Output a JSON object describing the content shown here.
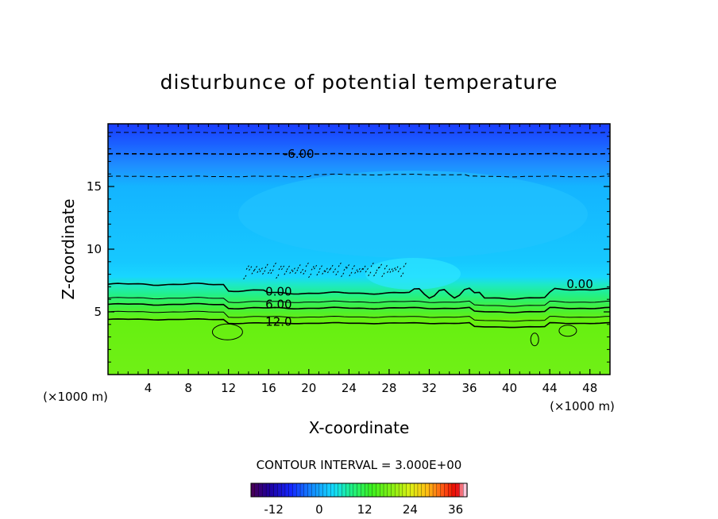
{
  "chart_data": {
    "type": "contour",
    "title": "disturbunce of potential temperature",
    "xlabel": "X-coordinate",
    "ylabel": "Z-coordinate",
    "x_unit_left": "(×1000 m)",
    "x_unit_right": "(×1000 m)",
    "xlim": [
      0,
      50
    ],
    "ylim": [
      0,
      20
    ],
    "x_ticks": [
      4,
      8,
      12,
      16,
      20,
      24,
      28,
      32,
      36,
      40,
      44,
      48
    ],
    "y_ticks": [
      5,
      10,
      15
    ],
    "contour_interval_label": "CONTOUR INTERVAL = 3.000E+00",
    "contour_interval": 3.0,
    "contour_labels": [
      {
        "text": "-6.00",
        "x": 19,
        "z": 17.6
      },
      {
        "text": "0.00",
        "x": 17,
        "z": 6.6
      },
      {
        "text": "6.00",
        "x": 17,
        "z": 5.6
      },
      {
        "text": "12.0",
        "x": 17,
        "z": 4.2
      },
      {
        "text": "0.00",
        "x": 47,
        "z": 7.2
      }
    ],
    "colorbar": {
      "min": -18,
      "max": 39,
      "ticks": [
        -12,
        0,
        12,
        24,
        36
      ],
      "tick_labels": [
        "-12",
        "0",
        "12",
        "24",
        "36"
      ]
    },
    "field_levels": [
      {
        "z_top": 20,
        "value": -9
      },
      {
        "z_top": 19,
        "value": -7.5
      },
      {
        "z_top": 17.5,
        "value": -5
      },
      {
        "z_top": 15.7,
        "value": -3
      },
      {
        "z_top": 13.5,
        "value": -2
      },
      {
        "z_top": 8,
        "value": 0
      },
      {
        "z_top": 7,
        "value": 4
      },
      {
        "z_top": 5.8,
        "value": 8
      },
      {
        "z_top": 4.5,
        "value": 13
      }
    ]
  }
}
